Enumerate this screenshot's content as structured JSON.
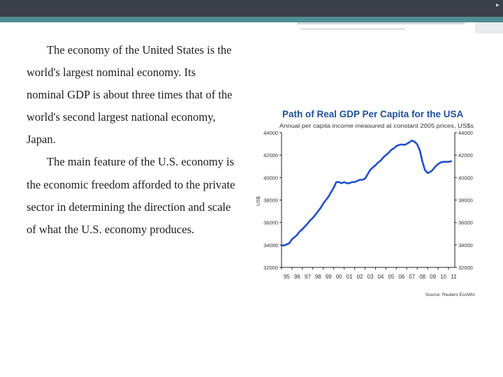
{
  "slide": {
    "paragraphs": [
      "The economy of the United States is the world's largest nominal economy. Its nominal GDP is about three times that of the world's second largest national economy, Japan.",
      "The main feature of the U.S. economy is the economic freedom afforded to the private sector in determining the direction and scale of what the U.S. economy produces."
    ]
  },
  "chart_data": {
    "type": "line",
    "title": "Path of Real GDP Per Capita for the USA",
    "subtitle": "Annual per capita income measured at constant 2005 prices, US$s",
    "ylabel": "US$",
    "source": "Source: Reuters EcoWin",
    "ylim": [
      32000,
      44000
    ],
    "y_ticks": [
      32000,
      34000,
      36000,
      38000,
      40000,
      42000,
      44000
    ],
    "x_tick_labels": [
      "95",
      "96",
      "97",
      "98",
      "99",
      "00",
      "01",
      "02",
      "03",
      "04",
      "05",
      "06",
      "07",
      "08",
      "09",
      "10",
      "11"
    ],
    "grid": false,
    "colors": {
      "line": "#1f4fd1",
      "title": "#1d4f9c",
      "axis": "#222222"
    },
    "series": [
      {
        "x": [
          1995.0,
          1995.25,
          1995.5,
          1995.75,
          1996.0,
          1996.25,
          1996.5,
          1996.75,
          1997.0,
          1997.25,
          1997.5,
          1997.75,
          1998.0,
          1998.25,
          1998.5,
          1998.75,
          1999.0,
          1999.25,
          1999.5,
          1999.75,
          2000.0,
          2000.25,
          2000.5,
          2000.75,
          2001.0,
          2001.25,
          2001.5,
          2001.75,
          2002.0,
          2002.25,
          2002.5,
          2002.75,
          2003.0,
          2003.25,
          2003.5,
          2003.75,
          2004.0,
          2004.25,
          2004.5,
          2004.75,
          2005.0,
          2005.25,
          2005.5,
          2005.75,
          2006.0,
          2006.25,
          2006.5,
          2006.75,
          2007.0,
          2007.25,
          2007.5,
          2007.75,
          2008.0,
          2008.25,
          2008.5,
          2008.75,
          2009.0,
          2009.25,
          2009.5,
          2009.75,
          2010.0,
          2010.25,
          2010.5,
          2010.75,
          2011.0,
          2011.25
        ],
        "values": [
          33950,
          33950,
          34050,
          34150,
          34500,
          34700,
          34900,
          35200,
          35400,
          35650,
          35900,
          36200,
          36400,
          36700,
          37000,
          37300,
          37700,
          38000,
          38300,
          38700,
          39100,
          39600,
          39600,
          39500,
          39600,
          39500,
          39500,
          39600,
          39600,
          39700,
          39800,
          39800,
          39900,
          40300,
          40700,
          40900,
          41100,
          41350,
          41500,
          41800,
          42000,
          42200,
          42450,
          42600,
          42800,
          42900,
          42950,
          42900,
          43000,
          43150,
          43300,
          43200,
          42950,
          42400,
          41400,
          40650,
          40400,
          40500,
          40700,
          41000,
          41200,
          41350,
          41400,
          41400,
          41400,
          41450
        ]
      }
    ]
  }
}
